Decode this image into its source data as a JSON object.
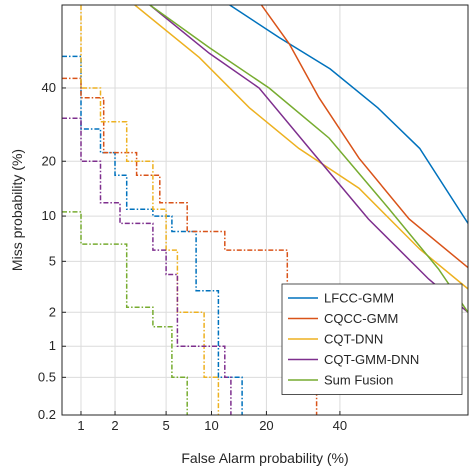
{
  "chart_data": {
    "type": "det",
    "xlabel": "False Alarm probability (%)",
    "ylabel": "Miss probability (%)",
    "xlim": [
      0.66,
      78
    ],
    "ylim": [
      0.2,
      66
    ],
    "xticks": [
      1,
      2,
      5,
      10,
      20,
      40
    ],
    "yticks": [
      0.2,
      0.5,
      1,
      2,
      5,
      10,
      20,
      40
    ],
    "grid": true,
    "legend": "lower right",
    "series": [
      {
        "name": "LFCC-GMM",
        "color": "#0072bd",
        "x": [
          12.8,
          23,
          37,
          52,
          65,
          78
        ],
        "values": [
          66,
          56,
          46,
          34,
          23,
          9
        ]
      },
      {
        "name": "CQCC-GMM",
        "color": "#d95319",
        "x": [
          18.9,
          25.5,
          33.7,
          46,
          61.8,
          78
        ],
        "values": [
          66,
          54,
          37,
          20.7,
          9.6,
          4.5
        ]
      },
      {
        "name": "CQT-DNN",
        "color": "#edb120",
        "x": [
          2.9,
          8.4,
          16.4,
          28,
          46,
          65,
          78
        ],
        "values": [
          66,
          49.6,
          34,
          23,
          14.5,
          6.1,
          3.1
        ]
      },
      {
        "name": "CQT-GMM-DNN",
        "color": "#7e2f8e",
        "x": [
          3.8,
          9.7,
          18.4,
          30.9,
          49,
          67.6,
          78
        ],
        "values": [
          66,
          51,
          40,
          23,
          9.6,
          3.7,
          2.0
        ]
      },
      {
        "name": "Sum Fusion",
        "color": "#77ac30",
        "x": [
          3.8,
          9.7,
          20.6,
          36.7,
          55.5,
          70.4,
          78
        ],
        "values": [
          66,
          52.8,
          40,
          25.6,
          11.1,
          4.4,
          2.0
        ]
      }
    ],
    "dashed_series": [
      {
        "color": "#0072bd",
        "x": [
          0.66,
          1,
          1,
          1.5,
          1.5,
          2,
          2,
          2.5,
          2.5,
          4,
          4,
          5.5,
          5.5,
          8,
          8,
          11,
          11,
          15,
          15
        ],
        "values": [
          50,
          50,
          28,
          28,
          22,
          22,
          17,
          17,
          11,
          11,
          10,
          10,
          8,
          8,
          3,
          3,
          0.5,
          0.5,
          0.2
        ]
      },
      {
        "color": "#d95319",
        "x": [
          0.66,
          1,
          1,
          1.6,
          1.6,
          3,
          3,
          4.5,
          4.5,
          7,
          7,
          12,
          12,
          25,
          25,
          33,
          33
        ],
        "values": [
          43,
          43,
          37,
          37,
          22,
          22,
          17,
          17,
          12,
          12,
          8,
          8,
          6,
          6,
          1.5,
          1.5,
          0.2
        ]
      },
      {
        "color": "#edb120",
        "x": [
          1,
          1,
          1.5,
          1.5,
          2.5,
          2.5,
          4,
          4,
          5,
          5,
          6,
          6,
          9,
          9,
          11,
          11
        ],
        "values": [
          66,
          40,
          40,
          30,
          30,
          20,
          20,
          11,
          11,
          6,
          6,
          2,
          2,
          0.5,
          0.5,
          0.2
        ]
      },
      {
        "color": "#7e2f8e",
        "x": [
          0.66,
          1,
          1,
          1.5,
          1.5,
          2.2,
          2.2,
          4,
          4,
          5,
          5,
          6,
          6,
          12,
          12,
          13,
          13
        ],
        "values": [
          31,
          31,
          20,
          20,
          12,
          12,
          9,
          9,
          6,
          6,
          4,
          4,
          1,
          1,
          0.5,
          0.5,
          0.2
        ]
      },
      {
        "color": "#77ac30",
        "x": [
          0.66,
          1,
          1,
          2.5,
          2.5,
          4,
          4,
          5.5,
          5.5,
          7,
          7
        ],
        "values": [
          10.6,
          10.6,
          6.6,
          6.6,
          2.2,
          2.2,
          1.5,
          1.5,
          0.5,
          0.5,
          0.2
        ]
      }
    ]
  }
}
